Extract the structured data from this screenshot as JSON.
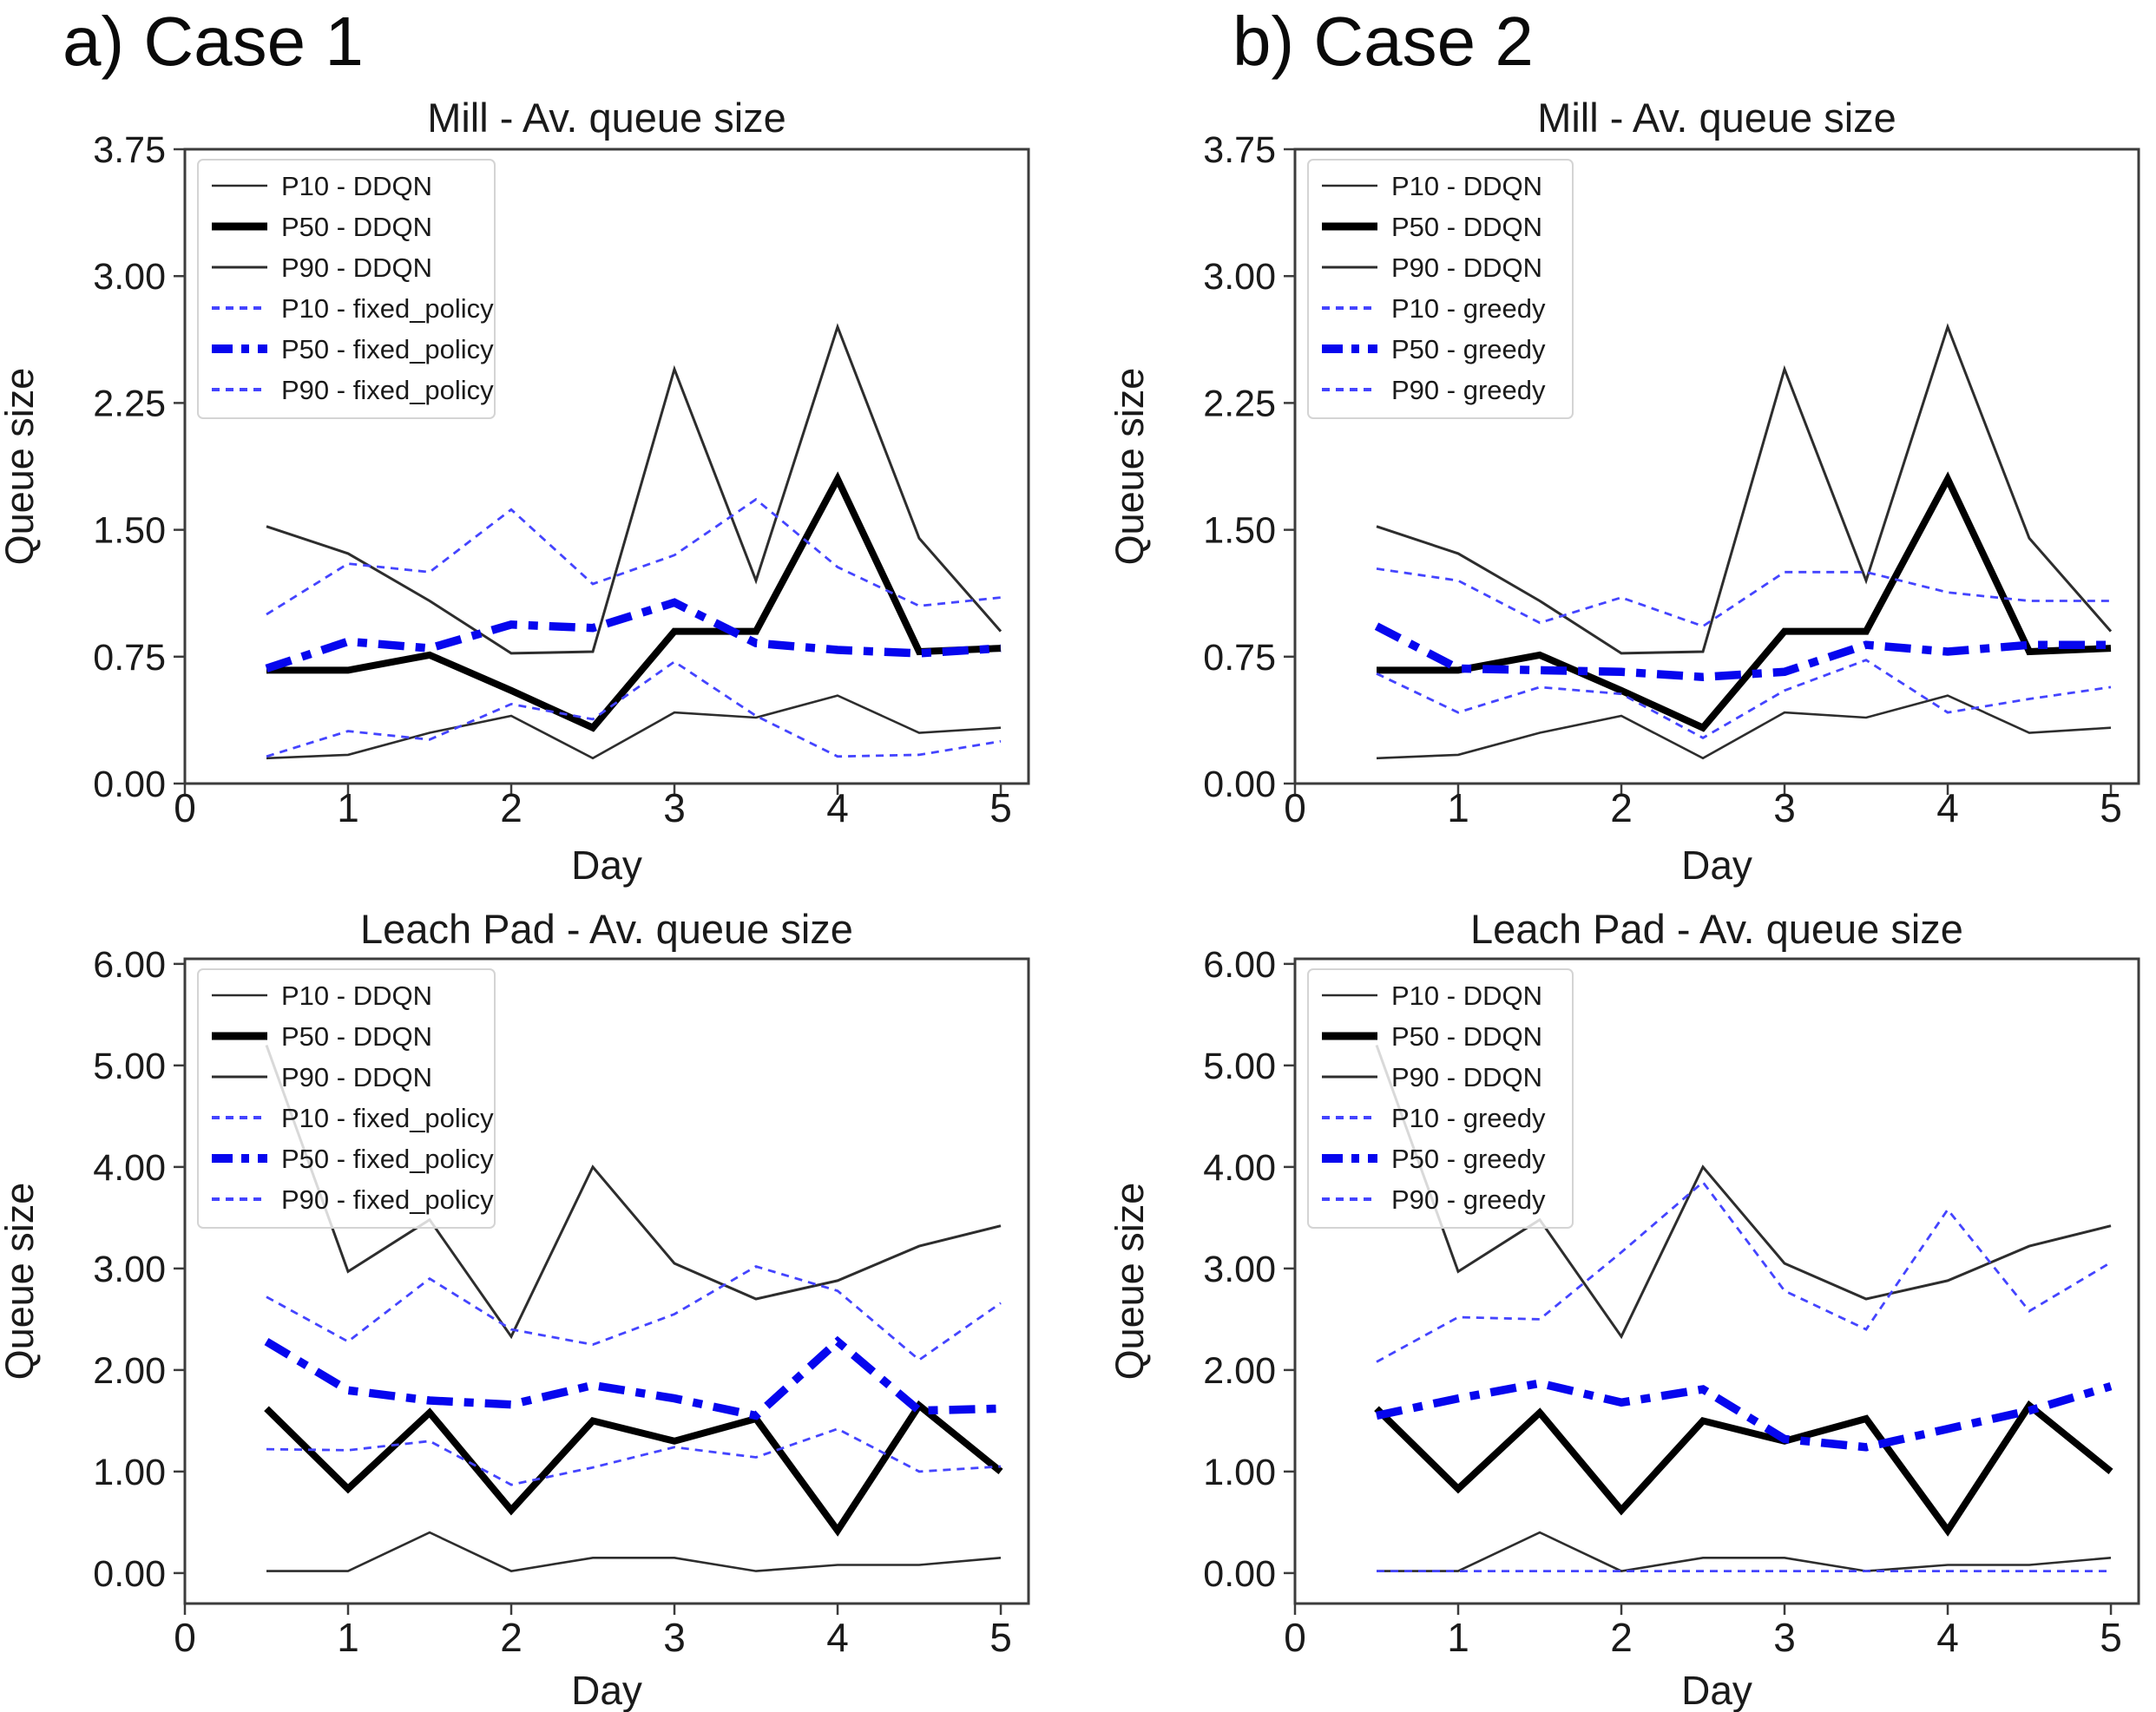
{
  "page": {
    "heading_a": "a) Case 1",
    "heading_b": "b) Case 2"
  },
  "colors": {
    "ddqn_thick": "#000000",
    "ddqn_thin": "#2d2d2d",
    "policy_thick": "#0606ee",
    "policy_thin": "#4444ff",
    "spine": "#3c3c3c",
    "text": "#1a1a1a",
    "legend_border": "#d4d4d4"
  },
  "chart_data": [
    {
      "id": "case1-mill",
      "type": "line",
      "title": "Mill - Av. queue size",
      "xlabel": "Day",
      "ylabel": "Queue size",
      "xlim": [
        0,
        5.17
      ],
      "ylim": [
        0,
        3.75
      ],
      "xticks": [
        "0",
        "1",
        "2",
        "3",
        "4",
        "5"
      ],
      "xtick_values": [
        0,
        1,
        2,
        3,
        4,
        5
      ],
      "ytick_labels": [
        "0.00",
        "0.75",
        "1.50",
        "2.25",
        "3.00",
        "3.75"
      ],
      "ytick_values": [
        0,
        0.75,
        1.5,
        2.25,
        3.0,
        3.75
      ],
      "legend_position": "upper-left",
      "grid": false,
      "x": [
        0.5,
        1,
        1.5,
        2,
        2.5,
        3,
        3.5,
        4,
        4.5,
        5
      ],
      "series": [
        {
          "name": "P10 - DDQN",
          "role": "p10-main",
          "values": [
            0.15,
            0.17,
            0.3,
            0.4,
            0.15,
            0.42,
            0.39,
            0.52,
            0.3,
            0.33
          ]
        },
        {
          "name": "P50 - DDQN",
          "role": "p50-main",
          "values": [
            0.67,
            0.67,
            0.76,
            0.55,
            0.33,
            0.9,
            0.9,
            1.8,
            0.78,
            0.8
          ]
        },
        {
          "name": "P90 - DDQN",
          "role": "p90-main",
          "values": [
            1.52,
            1.36,
            1.08,
            0.77,
            0.78,
            2.45,
            1.2,
            2.7,
            1.45,
            0.9
          ]
        },
        {
          "name": "P10 - fixed_policy",
          "role": "p10-alt",
          "values": [
            0.16,
            0.31,
            0.26,
            0.47,
            0.38,
            0.72,
            0.4,
            0.16,
            0.17,
            0.25
          ]
        },
        {
          "name": "P50 - fixed_policy",
          "role": "p50-alt",
          "values": [
            0.68,
            0.84,
            0.8,
            0.94,
            0.92,
            1.07,
            0.83,
            0.79,
            0.77,
            0.8
          ]
        },
        {
          "name": "P90 - fixed_policy",
          "role": "p90-alt",
          "values": [
            1.0,
            1.3,
            1.25,
            1.62,
            1.18,
            1.35,
            1.68,
            1.28,
            1.05,
            1.1
          ]
        }
      ]
    },
    {
      "id": "case2-mill",
      "type": "line",
      "title": "Mill - Av. queue size",
      "xlabel": "Day",
      "ylabel": "Queue size",
      "xlim": [
        0,
        5.17
      ],
      "ylim": [
        0,
        3.75
      ],
      "xticks": [
        "0",
        "1",
        "2",
        "3",
        "4",
        "5"
      ],
      "xtick_values": [
        0,
        1,
        2,
        3,
        4,
        5
      ],
      "ytick_labels": [
        "0.00",
        "0.75",
        "1.50",
        "2.25",
        "3.00",
        "3.75"
      ],
      "ytick_values": [
        0,
        0.75,
        1.5,
        2.25,
        3.0,
        3.75
      ],
      "legend_position": "upper-left",
      "grid": false,
      "x": [
        0.5,
        1,
        1.5,
        2,
        2.5,
        3,
        3.5,
        4,
        4.5,
        5
      ],
      "series": [
        {
          "name": "P10 - DDQN",
          "role": "p10-main",
          "values": [
            0.15,
            0.17,
            0.3,
            0.4,
            0.15,
            0.42,
            0.39,
            0.52,
            0.3,
            0.33
          ]
        },
        {
          "name": "P50 - DDQN",
          "role": "p50-main",
          "values": [
            0.67,
            0.67,
            0.76,
            0.55,
            0.33,
            0.9,
            0.9,
            1.8,
            0.78,
            0.8
          ]
        },
        {
          "name": "P90 - DDQN",
          "role": "p90-main",
          "values": [
            1.52,
            1.36,
            1.08,
            0.77,
            0.78,
            2.45,
            1.2,
            2.7,
            1.45,
            0.9
          ]
        },
        {
          "name": "P10 - greedy",
          "role": "p10-alt",
          "values": [
            0.65,
            0.42,
            0.57,
            0.53,
            0.27,
            0.55,
            0.73,
            0.42,
            0.5,
            0.57
          ]
        },
        {
          "name": "P50 - greedy",
          "role": "p50-alt",
          "values": [
            0.93,
            0.68,
            0.67,
            0.66,
            0.63,
            0.66,
            0.82,
            0.78,
            0.82,
            0.82
          ]
        },
        {
          "name": "P90 - greedy",
          "role": "p90-alt",
          "values": [
            1.27,
            1.2,
            0.95,
            1.1,
            0.93,
            1.25,
            1.25,
            1.13,
            1.08,
            1.08
          ]
        }
      ]
    },
    {
      "id": "case1-leachpad",
      "type": "line",
      "title": "Leach Pad - Av. queue size",
      "xlabel": "Day",
      "ylabel": "Queue size",
      "xlim": [
        0,
        5.17
      ],
      "ylim": [
        -0.3,
        6.05
      ],
      "xticks": [
        "0",
        "1",
        "2",
        "3",
        "4",
        "5"
      ],
      "xtick_values": [
        0,
        1,
        2,
        3,
        4,
        5
      ],
      "ytick_labels": [
        "0.00",
        "1.00",
        "2.00",
        "3.00",
        "4.00",
        "5.00",
        "6.00"
      ],
      "ytick_values": [
        0,
        1,
        2,
        3,
        4,
        5,
        6
      ],
      "legend_position": "upper-left",
      "grid": false,
      "x": [
        0.5,
        1,
        1.5,
        2,
        2.5,
        3,
        3.5,
        4,
        4.5,
        5
      ],
      "series": [
        {
          "name": "P10 - DDQN",
          "role": "p10-main",
          "values": [
            0.02,
            0.02,
            0.4,
            0.02,
            0.15,
            0.15,
            0.02,
            0.08,
            0.08,
            0.15
          ]
        },
        {
          "name": "P50 - DDQN",
          "role": "p50-main",
          "values": [
            1.62,
            0.83,
            1.58,
            0.62,
            1.5,
            1.3,
            1.52,
            0.42,
            1.65,
            1.0
          ]
        },
        {
          "name": "P90 - DDQN",
          "role": "p90-main",
          "values": [
            5.2,
            2.97,
            3.48,
            2.33,
            4.0,
            3.05,
            2.7,
            2.88,
            3.22,
            3.42
          ]
        },
        {
          "name": "P10 - fixed_policy",
          "role": "p10-alt",
          "values": [
            1.22,
            1.21,
            1.3,
            0.87,
            1.04,
            1.24,
            1.14,
            1.42,
            1.0,
            1.05
          ]
        },
        {
          "name": "P50 - fixed_policy",
          "role": "p50-alt",
          "values": [
            2.28,
            1.8,
            1.7,
            1.66,
            1.85,
            1.72,
            1.55,
            2.28,
            1.6,
            1.62
          ]
        },
        {
          "name": "P90 - fixed_policy",
          "role": "p90-alt",
          "values": [
            2.72,
            2.28,
            2.9,
            2.4,
            2.25,
            2.55,
            3.02,
            2.78,
            2.1,
            2.66
          ]
        }
      ]
    },
    {
      "id": "case2-leachpad",
      "type": "line",
      "title": "Leach Pad - Av. queue size",
      "xlabel": "Day",
      "ylabel": "Queue size",
      "xlim": [
        0,
        5.17
      ],
      "ylim": [
        -0.3,
        6.05
      ],
      "xticks": [
        "0",
        "1",
        "2",
        "3",
        "4",
        "5"
      ],
      "xtick_values": [
        0,
        1,
        2,
        3,
        4,
        5
      ],
      "ytick_labels": [
        "0.00",
        "1.00",
        "2.00",
        "3.00",
        "4.00",
        "5.00",
        "6.00"
      ],
      "ytick_values": [
        0,
        1,
        2,
        3,
        4,
        5,
        6
      ],
      "legend_position": "upper-left",
      "grid": false,
      "x": [
        0.5,
        1,
        1.5,
        2,
        2.5,
        3,
        3.5,
        4,
        4.5,
        5
      ],
      "series": [
        {
          "name": "P10 - DDQN",
          "role": "p10-main",
          "values": [
            0.02,
            0.02,
            0.4,
            0.02,
            0.15,
            0.15,
            0.02,
            0.08,
            0.08,
            0.15
          ]
        },
        {
          "name": "P50 - DDQN",
          "role": "p50-main",
          "values": [
            1.62,
            0.83,
            1.58,
            0.62,
            1.5,
            1.3,
            1.52,
            0.42,
            1.65,
            1.0
          ]
        },
        {
          "name": "P90 - DDQN",
          "role": "p90-main",
          "values": [
            5.2,
            2.97,
            3.48,
            2.33,
            4.0,
            3.05,
            2.7,
            2.88,
            3.22,
            3.42
          ]
        },
        {
          "name": "P10 - greedy",
          "role": "p10-alt",
          "values": [
            0.02,
            0.02,
            0.02,
            0.02,
            0.02,
            0.02,
            0.02,
            0.02,
            0.02,
            0.02
          ]
        },
        {
          "name": "P50 - greedy",
          "role": "p50-alt",
          "values": [
            1.55,
            1.72,
            1.87,
            1.68,
            1.81,
            1.32,
            1.24,
            1.42,
            1.6,
            1.84
          ]
        },
        {
          "name": "P90 - greedy",
          "role": "p90-alt",
          "values": [
            2.08,
            2.52,
            2.5,
            3.16,
            3.85,
            2.78,
            2.4,
            3.58,
            2.58,
            3.06
          ]
        }
      ]
    }
  ]
}
